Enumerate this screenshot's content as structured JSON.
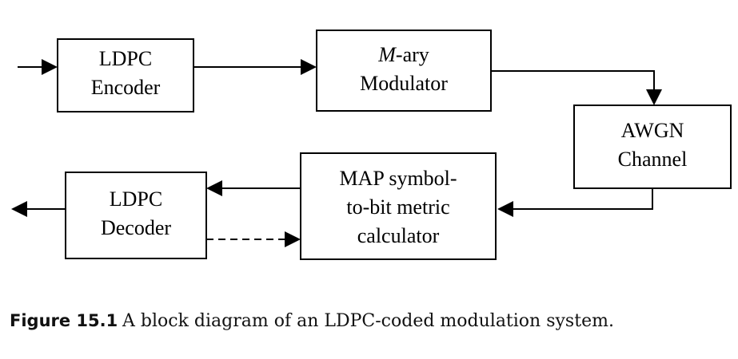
{
  "blocks": {
    "ldpc_encoder": {
      "line1": "LDPC",
      "line2": "Encoder"
    },
    "modulator": {
      "line1_italic": "M",
      "line1_rest": "-ary",
      "line2": "Modulator"
    },
    "awgn_channel": {
      "line1": "AWGN",
      "line2": "Channel"
    },
    "map_calculator": {
      "line1": "MAP symbol-",
      "line2": "to-bit metric",
      "line3": "calculator"
    },
    "ldpc_decoder": {
      "line1": "LDPC",
      "line2": "Decoder"
    }
  },
  "caption": {
    "label": "Figure 15.1",
    "text": "A block diagram of an LDPC-coded modulation system."
  }
}
